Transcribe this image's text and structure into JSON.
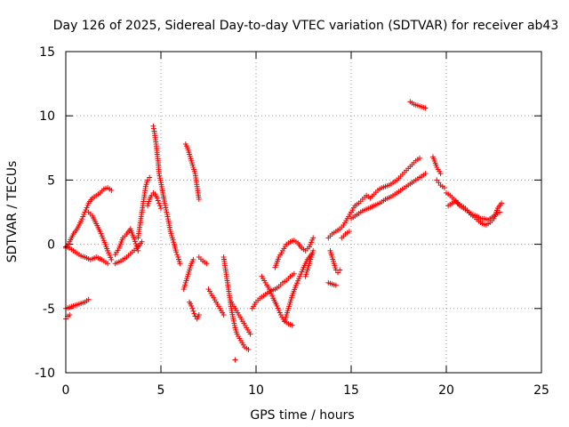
{
  "chart_data": {
    "type": "scatter",
    "title": "Day 126 of 2025, Sidereal Day-to-day VTEC variation (SDTVAR) for receiver ab43",
    "xlabel": "GPS time / hours",
    "ylabel": "SDTVAR / TECUs",
    "xlim": [
      0,
      25
    ],
    "ylim": [
      -10,
      15
    ],
    "xticks": [
      0,
      5,
      10,
      15,
      20,
      25
    ],
    "yticks": [
      -10,
      -5,
      0,
      5,
      10,
      15
    ],
    "grid": true,
    "legend": "none",
    "marker": "+",
    "series": [
      {
        "name": "SDTVAR",
        "color": "#ff0000",
        "segments": [
          {
            "x": [
              0.0,
              0.2,
              0.4,
              0.6,
              0.8,
              1.0,
              1.2,
              1.4,
              1.6,
              1.8,
              2.0,
              2.2,
              2.4
            ],
            "y": [
              -0.3,
              0.2,
              0.8,
              1.2,
              1.8,
              2.5,
              3.2,
              3.6,
              3.8,
              4.0,
              4.3,
              4.4,
              4.2
            ]
          },
          {
            "x": [
              0.0,
              0.2,
              0.5,
              0.8,
              1.0,
              1.3,
              1.6,
              1.9,
              2.2
            ],
            "y": [
              -0.2,
              -0.3,
              -0.6,
              -0.9,
              -1.0,
              -1.2,
              -1.0,
              -1.2,
              -1.5
            ]
          },
          {
            "x": [
              1.2,
              1.4,
              1.6,
              1.8,
              2.0,
              2.2,
              2.4
            ],
            "y": [
              2.5,
              2.2,
              1.6,
              1.0,
              0.3,
              -0.5,
              -1.2
            ]
          },
          {
            "x": [
              0.0,
              0.2,
              0.4,
              0.6,
              0.8,
              1.0,
              1.2
            ],
            "y": [
              -5.0,
              -4.9,
              -4.8,
              -4.7,
              -4.6,
              -4.5,
              -4.3
            ]
          },
          {
            "x": [
              0.0,
              0.1,
              0.2
            ],
            "y": [
              -5.8,
              -5.6,
              -5.5
            ]
          },
          {
            "x": [
              2.6,
              2.8,
              3.0,
              3.2,
              3.4,
              3.6,
              3.8
            ],
            "y": [
              -0.8,
              -0.3,
              0.5,
              0.8,
              1.2,
              0.4,
              -0.5
            ]
          },
          {
            "x": [
              2.6,
              2.9,
              3.2,
              3.5,
              3.8,
              4.0
            ],
            "y": [
              -1.5,
              -1.3,
              -1.0,
              -0.6,
              -0.2,
              0.2
            ]
          },
          {
            "x": [
              3.8,
              3.9,
              4.0,
              4.1,
              4.2,
              4.3,
              4.4
            ],
            "y": [
              0.5,
              1.5,
              2.5,
              3.5,
              4.5,
              5.0,
              5.2
            ]
          },
          {
            "x": [
              4.6,
              4.65,
              4.7,
              4.75,
              4.8,
              4.85,
              4.9,
              5.0,
              5.1,
              5.2,
              5.3,
              5.4,
              5.5,
              5.6,
              5.7,
              5.8,
              5.9,
              6.0
            ],
            "y": [
              9.2,
              8.8,
              8.3,
              7.8,
              7.0,
              6.5,
              5.5,
              4.8,
              4.0,
              3.2,
              2.5,
              1.8,
              1.0,
              0.5,
              0.0,
              -0.6,
              -1.0,
              -1.5
            ]
          },
          {
            "x": [
              4.3,
              4.4,
              4.5,
              4.6,
              4.7,
              4.8,
              4.9,
              5.0
            ],
            "y": [
              3.0,
              3.5,
              3.8,
              4.0,
              3.9,
              3.6,
              3.2,
              2.8
            ]
          },
          {
            "x": [
              6.2,
              6.3,
              6.4,
              6.5,
              6.6,
              6.7
            ],
            "y": [
              -3.5,
              -3.0,
              -2.5,
              -2.0,
              -1.5,
              -1.2
            ]
          },
          {
            "x": [
              6.5,
              6.6,
              6.7,
              6.8,
              6.9,
              7.0
            ],
            "y": [
              -4.5,
              -4.8,
              -5.2,
              -5.6,
              -5.8,
              -5.5
            ]
          },
          {
            "x": [
              6.3,
              6.4,
              6.5,
              6.6,
              6.7,
              6.8,
              6.9,
              7.0
            ],
            "y": [
              7.8,
              7.5,
              7.0,
              6.5,
              6.0,
              5.5,
              4.5,
              3.5
            ]
          },
          {
            "x": [
              7.0,
              7.2,
              7.4
            ],
            "y": [
              -1.0,
              -1.3,
              -1.5
            ]
          },
          {
            "x": [
              7.5,
              7.7,
              7.9,
              8.1,
              8.3
            ],
            "y": [
              -3.5,
              -4.0,
              -4.5,
              -5.0,
              -5.5
            ]
          },
          {
            "x": [
              8.3,
              8.4,
              8.5,
              8.6,
              8.7,
              8.8,
              8.9,
              9.0,
              9.2,
              9.4,
              9.6
            ],
            "y": [
              -1.0,
              -2.0,
              -3.0,
              -4.0,
              -5.0,
              -5.8,
              -6.5,
              -7.0,
              -7.5,
              -8.0,
              -8.2
            ]
          },
          {
            "x": [
              8.7,
              8.9,
              9.1,
              9.3,
              9.5,
              9.7
            ],
            "y": [
              -4.5,
              -5.0,
              -5.5,
              -6.0,
              -6.5,
              -7.0
            ]
          },
          {
            "x": [
              8.9
            ],
            "y": [
              -9.0
            ]
          },
          {
            "x": [
              9.8,
              10.0,
              10.2,
              10.4,
              10.6,
              10.8,
              11.0,
              11.2,
              11.4,
              11.6,
              11.8,
              12.0
            ],
            "y": [
              -5.0,
              -4.5,
              -4.2,
              -4.0,
              -3.8,
              -3.6,
              -3.5,
              -3.3,
              -3.0,
              -2.8,
              -2.5,
              -2.3
            ]
          },
          {
            "x": [
              10.3,
              10.5,
              10.7,
              10.9,
              11.1,
              11.3,
              11.5,
              11.7,
              11.9
            ],
            "y": [
              -2.5,
              -3.0,
              -3.5,
              -4.2,
              -4.8,
              -5.5,
              -6.0,
              -6.2,
              -6.3
            ]
          },
          {
            "x": [
              11.0,
              11.2,
              11.4,
              11.6,
              11.8,
              12.0,
              12.2,
              12.4,
              12.6,
              12.8,
              13.0
            ],
            "y": [
              -1.8,
              -1.0,
              -0.5,
              0.0,
              0.2,
              0.3,
              0.1,
              -0.3,
              -0.5,
              -0.2,
              0.5
            ]
          },
          {
            "x": [
              11.5,
              11.7,
              11.9,
              12.1,
              12.3,
              12.5,
              12.7,
              12.9
            ],
            "y": [
              -6.0,
              -5.0,
              -4.0,
              -3.2,
              -2.5,
              -1.8,
              -1.2,
              -0.8
            ]
          },
          {
            "x": [
              12.6,
              12.7,
              12.8,
              12.9,
              13.0
            ],
            "y": [
              -2.5,
              -2.0,
              -1.5,
              -1.0,
              -0.5
            ]
          },
          {
            "x": [
              13.9,
              14.0,
              14.1,
              14.2,
              14.3,
              14.4
            ],
            "y": [
              -0.5,
              -1.0,
              -1.5,
              -2.0,
              -2.2,
              -2.0
            ]
          },
          {
            "x": [
              13.8,
              14.0,
              14.2
            ],
            "y": [
              -3.0,
              -3.1,
              -3.2
            ]
          },
          {
            "x": [
              13.8,
              14.0,
              14.2,
              14.4,
              14.6
            ],
            "y": [
              0.5,
              0.8,
              1.0,
              1.2,
              1.5
            ]
          },
          {
            "x": [
              14.6,
              14.8,
              15.0,
              15.2,
              15.4,
              15.6,
              15.8,
              16.0,
              16.2,
              16.4,
              16.6,
              16.8,
              17.0,
              17.2,
              17.4,
              17.6,
              17.8,
              18.0,
              18.2,
              18.4,
              18.6
            ],
            "y": [
              1.5,
              2.0,
              2.5,
              3.0,
              3.2,
              3.5,
              3.8,
              3.6,
              3.9,
              4.2,
              4.4,
              4.5,
              4.6,
              4.8,
              5.0,
              5.3,
              5.6,
              5.9,
              6.2,
              6.5,
              6.7
            ]
          },
          {
            "x": [
              15.0,
              15.3,
              15.6,
              15.9,
              16.2,
              16.5,
              16.8,
              17.1,
              17.4,
              17.7,
              18.0,
              18.3,
              18.6,
              18.9
            ],
            "y": [
              2.0,
              2.3,
              2.6,
              2.8,
              3.0,
              3.2,
              3.5,
              3.7,
              4.0,
              4.3,
              4.6,
              4.9,
              5.2,
              5.5
            ]
          },
          {
            "x": [
              14.5,
              14.7,
              14.9
            ],
            "y": [
              0.5,
              0.8,
              1.0
            ]
          },
          {
            "x": [
              18.1,
              18.3,
              18.5,
              18.7,
              18.9
            ],
            "y": [
              11.1,
              10.9,
              10.8,
              10.7,
              10.6
            ]
          },
          {
            "x": [
              19.3,
              19.5,
              19.7
            ],
            "y": [
              6.8,
              6.0,
              5.5
            ]
          },
          {
            "x": [
              19.5,
              19.6,
              19.7,
              19.8,
              19.9
            ],
            "y": [
              5.0,
              4.8,
              4.6,
              4.5,
              4.4
            ]
          },
          {
            "x": [
              20.0,
              20.2,
              20.4,
              20.6,
              20.8,
              21.0,
              21.2,
              21.4,
              21.6,
              21.8,
              22.0,
              22.2,
              22.4,
              22.6,
              22.8
            ],
            "y": [
              4.0,
              3.8,
              3.5,
              3.2,
              3.0,
              2.8,
              2.5,
              2.3,
              2.2,
              2.0,
              2.0,
              1.9,
              2.1,
              2.3,
              2.5
            ]
          },
          {
            "x": [
              20.1,
              20.3,
              20.5,
              20.7,
              20.9,
              21.1,
              21.3,
              21.5,
              21.7,
              21.9,
              22.1,
              22.3,
              22.5,
              22.7,
              22.9
            ],
            "y": [
              3.0,
              3.2,
              3.4,
              3.0,
              2.8,
              2.6,
              2.3,
              2.1,
              1.8,
              1.6,
              1.5,
              1.7,
              2.0,
              2.8,
              3.2
            ]
          }
        ]
      }
    ]
  }
}
